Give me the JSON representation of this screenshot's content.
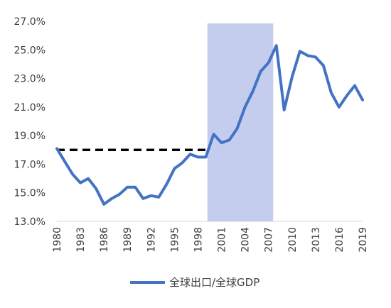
{
  "chart_data": {
    "type": "line",
    "title": "",
    "xlabel": "",
    "ylabel": "",
    "x": [
      1980,
      1981,
      1982,
      1983,
      1984,
      1985,
      1986,
      1987,
      1988,
      1989,
      1990,
      1991,
      1992,
      1993,
      1994,
      1995,
      1996,
      1997,
      1998,
      1999,
      2000,
      2001,
      2002,
      2003,
      2004,
      2005,
      2006,
      2007,
      2008,
      2009,
      2010,
      2011,
      2012,
      2013,
      2014,
      2015,
      2016,
      2017,
      2018,
      2019
    ],
    "xlim": [
      1980,
      2019
    ],
    "ylim": [
      13.0,
      27.0
    ],
    "y_ticks": [
      13.0,
      15.0,
      17.0,
      19.0,
      21.0,
      23.0,
      25.0,
      27.0
    ],
    "y_tick_labels": [
      "13.0%",
      "15.0%",
      "17.0%",
      "19.0%",
      "21.0%",
      "23.0%",
      "25.0%",
      "27.0%"
    ],
    "x_tick_labels": [
      "1980",
      "1983",
      "1986",
      "1989",
      "1992",
      "1995",
      "1998",
      "2001",
      "2004",
      "2007",
      "2010",
      "2013",
      "2016",
      "2019"
    ],
    "series": [
      {
        "name": "全球出口/全球GDP",
        "color": "#4472C4",
        "values": [
          18.1,
          17.2,
          16.3,
          15.7,
          16.0,
          15.3,
          14.2,
          14.6,
          14.9,
          15.4,
          15.4,
          14.6,
          14.8,
          14.7,
          15.6,
          16.7,
          17.1,
          17.7,
          17.5,
          17.5,
          19.1,
          18.5,
          18.7,
          19.5,
          21.0,
          22.1,
          23.5,
          24.1,
          25.3,
          20.8,
          23.1,
          24.9,
          24.6,
          24.5,
          23.9,
          22.0,
          21.0,
          21.8,
          22.5,
          21.5
        ]
      }
    ],
    "reference_line": {
      "value": 18.0,
      "x_start": 1980,
      "x_end": 1999,
      "style": "dashed",
      "color": "#000000"
    },
    "shaded_region": {
      "x_start": 1999.2,
      "x_end": 2007.6,
      "color": "#C5CDEF"
    },
    "legend": {
      "position": "bottom"
    }
  }
}
